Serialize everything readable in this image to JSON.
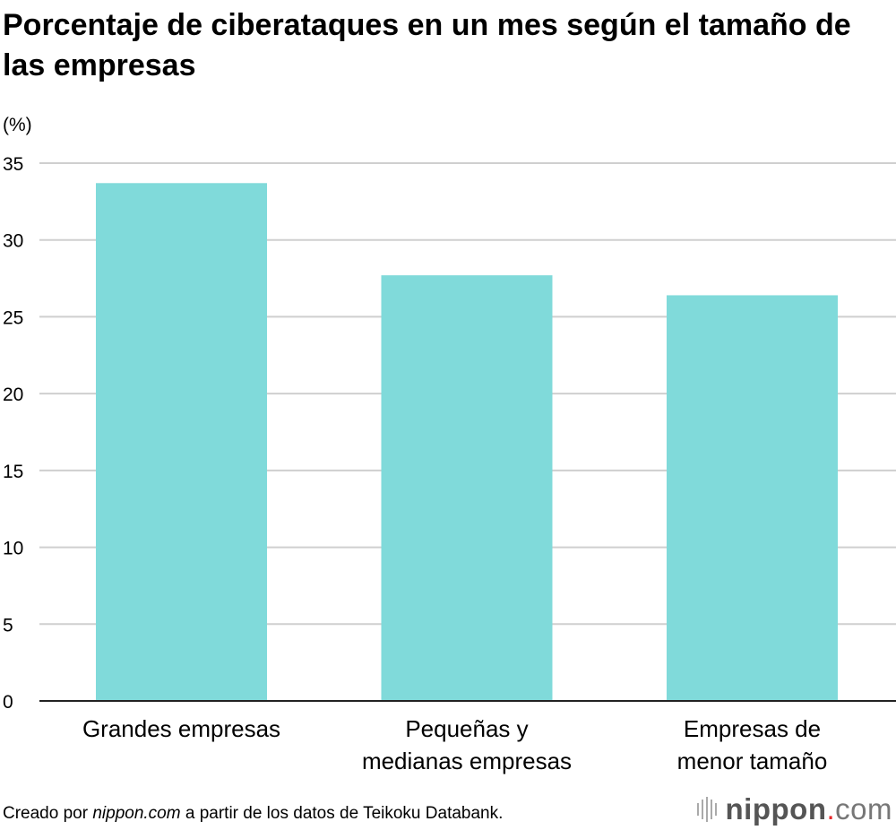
{
  "chart_data": {
    "type": "bar",
    "title": "Porcentaje de ciberataques en un mes según el tamaño de las empresas",
    "ylabel": "(%)",
    "xlabel": "",
    "categories": [
      [
        "Grandes empresas"
      ],
      [
        "Pequeñas y",
        "medianas empresas"
      ],
      [
        "Empresas de",
        "menor tamaño"
      ]
    ],
    "values": [
      33.7,
      27.7,
      26.4
    ],
    "ylim": [
      0,
      35
    ],
    "yticks": [
      0,
      5,
      10,
      15,
      20,
      25,
      30,
      35
    ],
    "grid": true,
    "bar_color": "#80dada"
  },
  "source": {
    "prefix": "Creado por ",
    "site": "nippon.com",
    "suffix": " a partir de los datos de Teikoku Databank."
  },
  "logo": {
    "name": "nippon",
    "dot": ".",
    "tld": "com",
    "accent": "#e8282b"
  }
}
